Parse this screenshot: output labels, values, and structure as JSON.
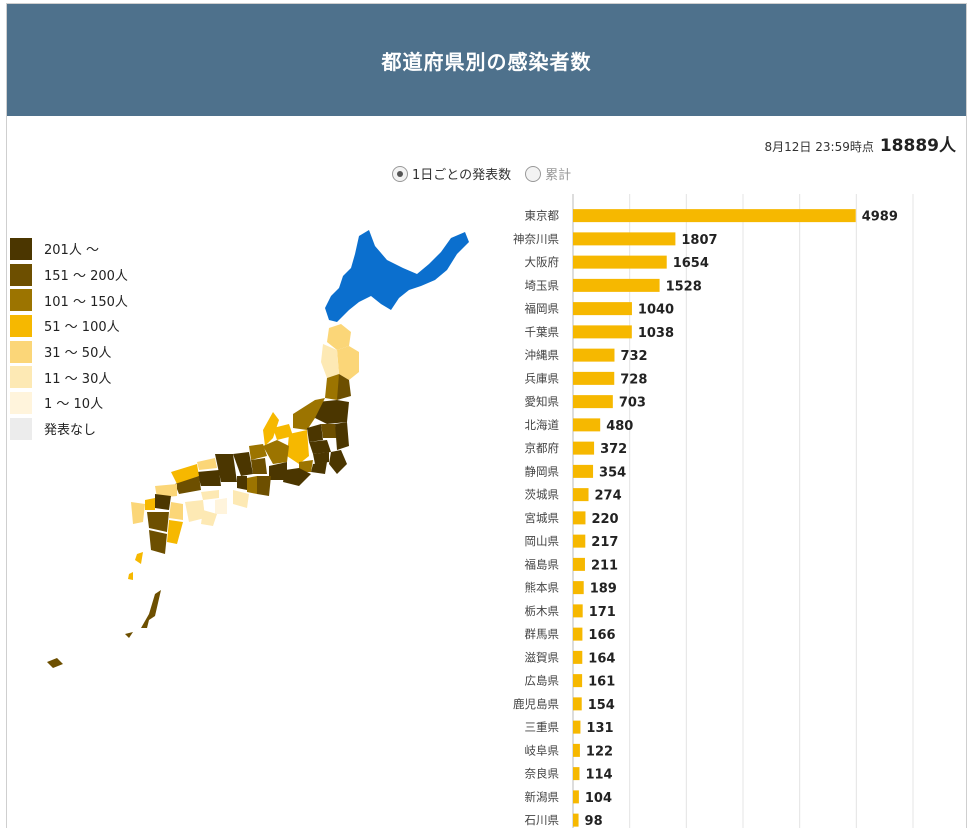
{
  "header": {
    "title": "都道府県別の感染者数"
  },
  "stamp": {
    "date": "8月12日 23:59時点",
    "total": "18889人"
  },
  "toggle": {
    "daily_label": "1日ごとの発表数",
    "cumulative_label": "累計",
    "selected": "daily"
  },
  "legend": [
    {
      "label": "201人 ～",
      "color": "#4b3600"
    },
    {
      "label": "151 ～ 200人",
      "color": "#6d4f00"
    },
    {
      "label": "101 ～ 150人",
      "color": "#9c7400"
    },
    {
      "label": "51 ～ 100人",
      "color": "#f6b800"
    },
    {
      "label": "31 ～ 50人",
      "color": "#fbd678"
    },
    {
      "label": "11 ～ 30人",
      "color": "#fde9b4"
    },
    {
      "label": "1 ～ 10人",
      "color": "#fff4dc"
    },
    {
      "label": "発表なし",
      "color": "#ececec"
    }
  ],
  "colors": {
    "bar": "#f6b800",
    "highlight_region": "#0b6fce",
    "header_bg": "#4e718c"
  },
  "chart_data": {
    "type": "bar",
    "orientation": "horizontal",
    "categories": [
      "東京都",
      "神奈川県",
      "大阪府",
      "埼玉県",
      "福岡県",
      "千葉県",
      "沖縄県",
      "兵庫県",
      "愛知県",
      "北海道",
      "京都府",
      "静岡県",
      "茨城県",
      "宮城県",
      "岡山県",
      "福島県",
      "熊本県",
      "栃木県",
      "群馬県",
      "滋賀県",
      "広島県",
      "鹿児島県",
      "三重県",
      "岐阜県",
      "奈良県",
      "新潟県",
      "石川県"
    ],
    "values": [
      4989,
      1807,
      1654,
      1528,
      1040,
      1038,
      732,
      728,
      703,
      480,
      372,
      354,
      274,
      220,
      217,
      211,
      189,
      171,
      166,
      164,
      161,
      154,
      131,
      122,
      114,
      104,
      98
    ],
    "xlim": [
      0,
      6000
    ],
    "grid": true
  }
}
